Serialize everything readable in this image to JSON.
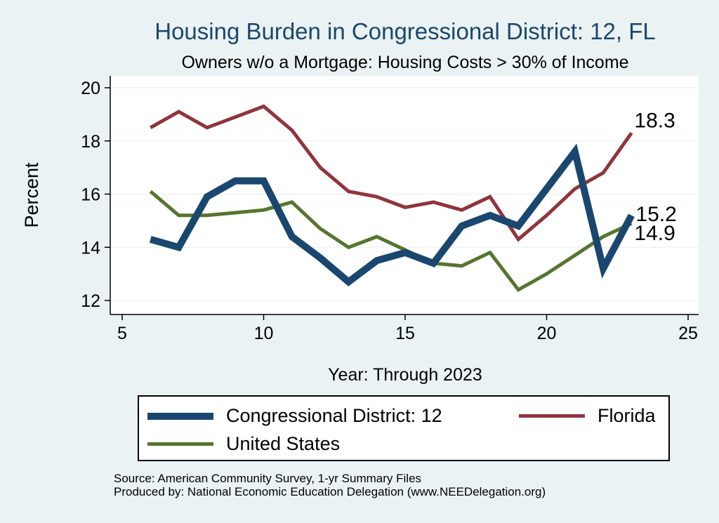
{
  "chart_data": {
    "type": "line",
    "title": "Housing Burden in Congressional District:  12, FL",
    "subtitle": "Owners w/o a Mortgage: Housing Costs > 30% of Income",
    "xlabel": "Year: Through 2023",
    "ylabel": "Percent",
    "xlim": [
      5,
      25
    ],
    "ylim": [
      12,
      20
    ],
    "xticks": [
      5,
      10,
      15,
      20,
      25
    ],
    "yticks": [
      12,
      14,
      16,
      18,
      20
    ],
    "grid": true,
    "legend_position": "bottom",
    "series": [
      {
        "name": "Congressional District:  12",
        "color": "#1a476f",
        "x": [
          6,
          7,
          8,
          9,
          10,
          11,
          12,
          13,
          14,
          15,
          16,
          17,
          18,
          19,
          20,
          21,
          22,
          23
        ],
        "values": [
          14.3,
          14.0,
          15.9,
          16.5,
          16.5,
          14.4,
          13.6,
          12.7,
          13.5,
          13.8,
          13.4,
          14.8,
          15.2,
          14.8,
          16.2,
          17.6,
          13.2,
          15.2
        ],
        "end_label": "15.2"
      },
      {
        "name": "Florida",
        "color": "#90353b",
        "x": [
          6,
          7,
          8,
          9,
          10,
          11,
          12,
          13,
          14,
          15,
          16,
          17,
          18,
          19,
          20,
          21,
          22,
          23
        ],
        "values": [
          18.5,
          19.1,
          18.5,
          18.9,
          19.3,
          18.4,
          17.0,
          16.1,
          15.9,
          15.5,
          15.7,
          15.4,
          15.9,
          14.3,
          15.2,
          16.2,
          16.8,
          18.3
        ],
        "end_label": "18.3"
      },
      {
        "name": "United States",
        "color": "#55752f",
        "x": [
          6,
          7,
          8,
          9,
          10,
          11,
          12,
          13,
          14,
          15,
          16,
          17,
          18,
          19,
          20,
          21,
          22,
          23
        ],
        "values": [
          16.1,
          15.2,
          15.2,
          15.3,
          15.4,
          15.7,
          14.7,
          14.0,
          14.4,
          13.9,
          13.4,
          13.3,
          13.8,
          12.4,
          13.0,
          13.7,
          14.4,
          14.9
        ],
        "end_label": "14.9"
      }
    ],
    "legend": [
      {
        "label": "Congressional District:  12",
        "color": "#1a476f",
        "width": 10
      },
      {
        "label": "Florida",
        "color": "#90353b",
        "width": 5
      },
      {
        "label": "United States",
        "color": "#55752f",
        "width": 5
      }
    ]
  },
  "source": {
    "line1": "Source: American Community Survey, 1-yr Summary Files",
    "line2": "Produced by: National Economic Education Delegation (www.NEEDelegation.org)"
  }
}
